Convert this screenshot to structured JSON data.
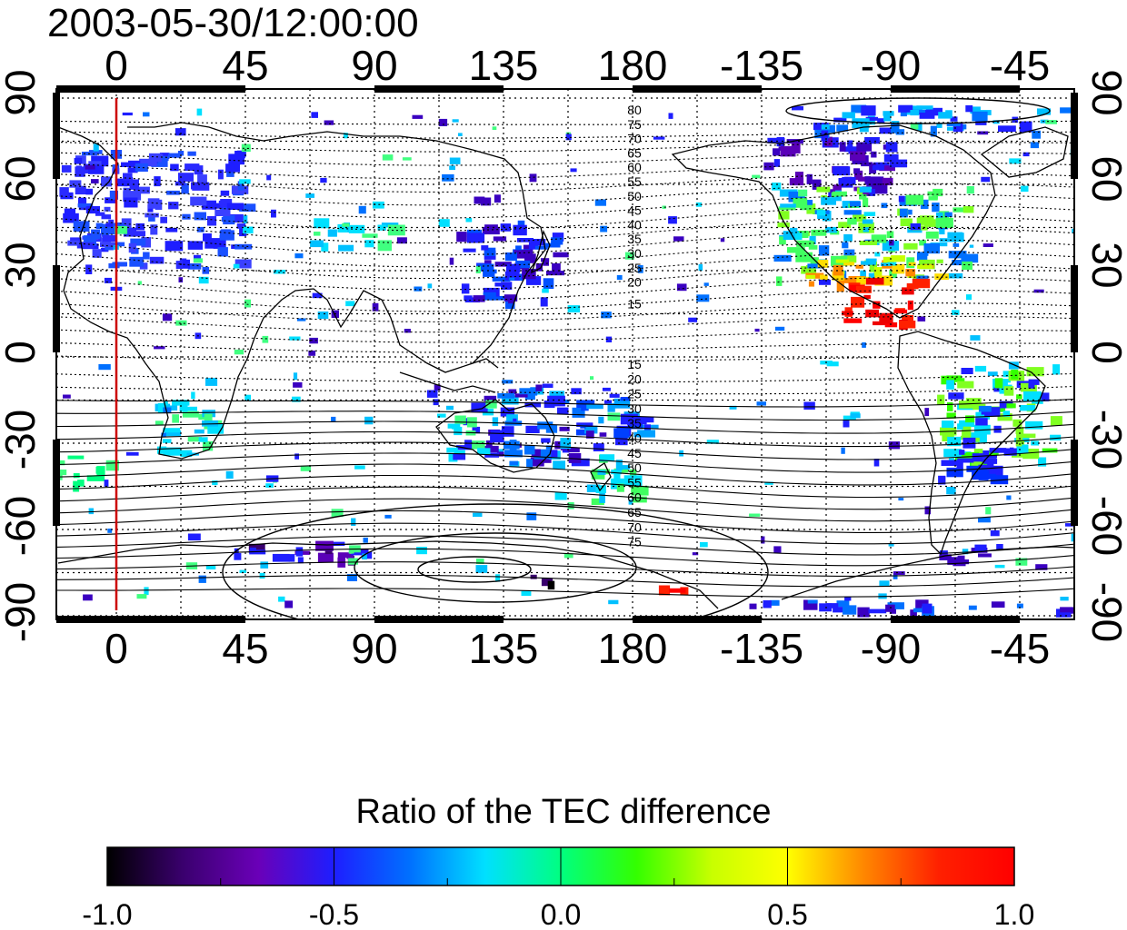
{
  "title": "2003-05-30/12:00:00",
  "colorbar": {
    "title": "Ratio of the TEC difference",
    "ticks": [
      "-1.0",
      "-0.5",
      "0.0",
      "0.5",
      "1.0"
    ],
    "stops": [
      "#000000",
      "#3a006e",
      "#6a00b8",
      "#1e1eff",
      "#0070ff",
      "#00e0ff",
      "#00ff80",
      "#33ff00",
      "#c8ff00",
      "#ffff00",
      "#ff8800",
      "#ff2000",
      "#ff0000"
    ]
  },
  "map": {
    "top_lon_labels": [
      "0",
      "45",
      "90",
      "135",
      "180",
      "-135",
      "-90",
      "-45"
    ],
    "bottom_lon_labels": [
      "0",
      "45",
      "90",
      "135",
      "180",
      "-135",
      "-90",
      "-45"
    ],
    "left_lat_labels": [
      "90",
      "60",
      "30",
      "0",
      "-30",
      "-60",
      "-90"
    ],
    "right_lat_labels": [
      "90",
      "60",
      "30",
      "0",
      "-30",
      "-60",
      "-90"
    ],
    "north_contour_labels": [
      "80",
      "75",
      "70",
      "65",
      "60",
      "55",
      "50",
      "45",
      "40",
      "35",
      "30",
      "25",
      "20",
      "15"
    ],
    "south_contour_labels": [
      "15",
      "20",
      "25",
      "30",
      "35",
      "40",
      "45",
      "50",
      "55",
      "60",
      "65",
      "70",
      "75"
    ],
    "marker_line_color": "#cc0000"
  }
}
